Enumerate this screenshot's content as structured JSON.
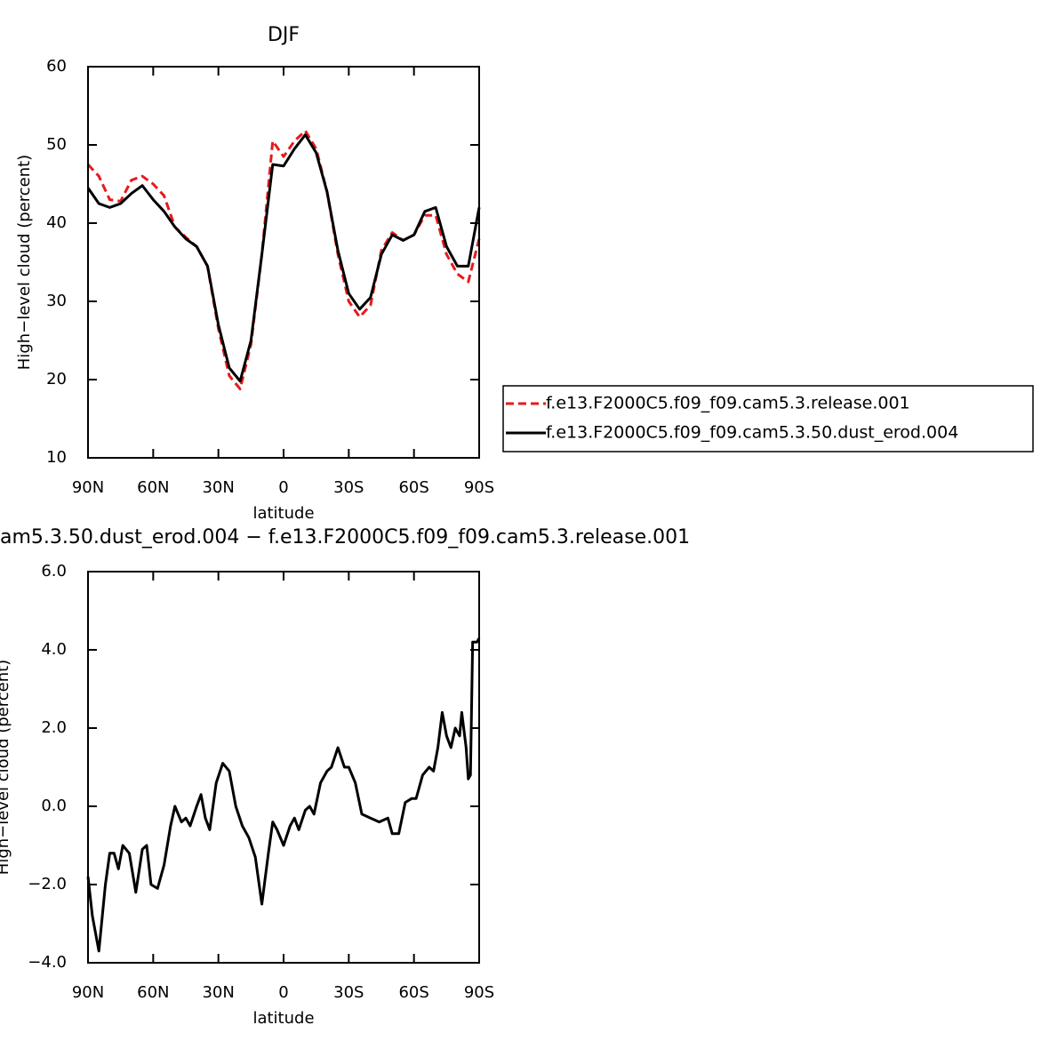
{
  "chart_data": [
    {
      "type": "line",
      "title": "DJF",
      "xlabel": "latitude",
      "ylabel": "High−level cloud (percent)",
      "x": [
        90,
        85,
        80,
        75,
        70,
        65,
        60,
        55,
        50,
        45,
        40,
        35,
        30,
        25,
        20,
        15,
        10,
        5,
        0,
        -5,
        -10,
        -15,
        -20,
        -25,
        -30,
        -35,
        -40,
        -45,
        -50,
        -55,
        -60,
        -65,
        -70,
        -75,
        -80,
        -85,
        -90
      ],
      "series": [
        {
          "name": "f.e13.F2000C5.f09_f09.cam5.3.release.001",
          "color": "#e8191c",
          "dash": "dashed",
          "values": [
            47.5,
            46,
            43,
            42.8,
            45.5,
            46,
            45,
            43.5,
            39.5,
            38.2,
            37,
            34.5,
            26.5,
            20.5,
            18.8,
            24.5,
            36,
            50.5,
            48.5,
            50.5,
            51.8,
            49.5,
            44,
            36,
            30,
            28,
            29.5,
            36.5,
            38.8,
            37.8,
            38.5,
            41,
            41,
            36,
            33.5,
            32.5,
            38
          ]
        },
        {
          "name": "f.e13.F2000C5.f09_f09.cam5.3.50.dust_erod.004",
          "color": "#000000",
          "dash": "solid",
          "values": [
            44.5,
            42.5,
            42,
            42.5,
            43.8,
            44.8,
            43,
            41.5,
            39.5,
            38,
            37,
            34.5,
            27,
            21.5,
            19.8,
            25,
            36,
            47.5,
            47.3,
            49.5,
            51.3,
            49,
            44,
            36.5,
            31,
            29,
            30.5,
            36,
            38.5,
            37.8,
            38.5,
            41.5,
            42,
            37,
            34.5,
            34.5,
            42
          ]
        }
      ],
      "xlim": [
        90,
        -90
      ],
      "xticks": [
        {
          "value": 90,
          "label": "90N"
        },
        {
          "value": 60,
          "label": "60N"
        },
        {
          "value": 30,
          "label": "30N"
        },
        0,
        {
          "value": -30,
          "label": "30S"
        },
        {
          "value": -60,
          "label": "60S"
        },
        {
          "value": -90,
          "label": "90S"
        }
      ],
      "ylim": [
        10,
        60
      ],
      "yticks": [
        10,
        20,
        30,
        40,
        50,
        60
      ],
      "legend": "right"
    },
    {
      "type": "line",
      "title": "am5.3.50.dust_erod.004 − f.e13.F2000C5.f09_f09.cam5.3.release.001",
      "xlabel": "latitude",
      "ylabel": "High−level cloud (percent)",
      "x": [
        90,
        88,
        85,
        82,
        80,
        78,
        76,
        74,
        71,
        68,
        65,
        63,
        61,
        58,
        55,
        52,
        50,
        47,
        45,
        43,
        40,
        38,
        36,
        34,
        31,
        28,
        25,
        22,
        19,
        16,
        13,
        10,
        7,
        5,
        3,
        0,
        -3,
        -5,
        -7,
        -10,
        -12,
        -14,
        -17,
        -20,
        -22,
        -25,
        -28,
        -30,
        -33,
        -36,
        -40,
        -44,
        -48,
        -50,
        -53,
        -56,
        -59,
        -61,
        -64,
        -67,
        -69,
        -71,
        -73,
        -75,
        -77,
        -79,
        -81,
        -82,
        -84,
        -85,
        -86,
        -87,
        -89,
        -90
      ],
      "series": [
        {
          "color": "#000000",
          "dash": "solid",
          "values": [
            -1.8,
            -2.8,
            -3.7,
            -2.0,
            -1.2,
            -1.2,
            -1.6,
            -1.0,
            -1.2,
            -2.2,
            -1.1,
            -1.0,
            -2.0,
            -2.1,
            -1.5,
            -0.5,
            0.0,
            -0.4,
            -0.3,
            -0.5,
            0.0,
            0.3,
            -0.3,
            -0.6,
            0.6,
            1.1,
            0.9,
            0.0,
            -0.5,
            -0.8,
            -1.3,
            -2.5,
            -1.2,
            -0.4,
            -0.6,
            -1.0,
            -0.5,
            -0.3,
            -0.6,
            -0.1,
            0.0,
            -0.2,
            0.6,
            0.9,
            1.0,
            1.5,
            1.0,
            1.0,
            0.6,
            -0.2,
            -0.3,
            -0.4,
            -0.3,
            -0.7,
            -0.7,
            0.1,
            0.2,
            0.2,
            0.8,
            1.0,
            0.9,
            1.5,
            2.4,
            1.8,
            1.5,
            2.0,
            1.8,
            2.4,
            1.5,
            0.7,
            0.8,
            4.2,
            4.2,
            4.3
          ]
        }
      ],
      "xlim": [
        90,
        -90
      ],
      "xticks": [
        {
          "value": 90,
          "label": "90N"
        },
        {
          "value": 60,
          "label": "60N"
        },
        {
          "value": 30,
          "label": "30N"
        },
        0,
        {
          "value": -30,
          "label": "30S"
        },
        {
          "value": -60,
          "label": "60S"
        },
        {
          "value": -90,
          "label": "90S"
        }
      ],
      "ylim": [
        -4,
        6
      ],
      "yticks": [
        {
          "value": -4,
          "label": "−4.0"
        },
        {
          "value": -2,
          "label": "−2.0"
        },
        {
          "value": 0,
          "label": "0.0"
        },
        {
          "value": 2,
          "label": "2.0"
        },
        {
          "value": 4,
          "label": "4.0"
        },
        {
          "value": 6,
          "label": "6.0"
        }
      ]
    }
  ]
}
